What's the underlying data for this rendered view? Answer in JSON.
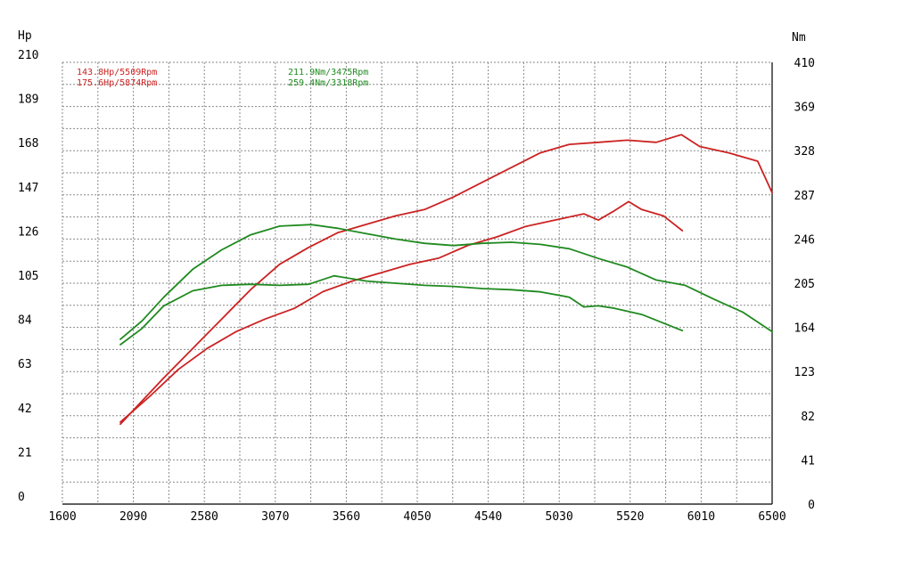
{
  "chart_data": {
    "type": "line",
    "x_unit": "",
    "left_axis": {
      "unit": "Hp",
      "ticks": [
        0,
        21,
        42,
        63,
        84,
        105,
        126,
        147,
        168,
        189,
        210
      ],
      "range": [
        0,
        210
      ]
    },
    "right_axis": {
      "unit": "Nm",
      "ticks": [
        0,
        41,
        82,
        123,
        164,
        205,
        246,
        287,
        328,
        369,
        410
      ],
      "range": [
        0,
        410
      ]
    },
    "x_axis": {
      "ticks": [
        1600,
        2090,
        2580,
        3070,
        3560,
        4050,
        4540,
        5030,
        5520,
        6010,
        6500
      ],
      "range": [
        1600,
        6500
      ]
    },
    "grid": true,
    "annotations": {
      "power_lines": [
        "143.8Hp/5509Rpm",
        "175.6Hp/5874Rpm"
      ],
      "torque_lines": [
        "211.9Nm/3475Rpm",
        "259.4Nm/3318Rpm"
      ]
    },
    "colors": {
      "power": "#cc2222",
      "torque": "#1f8a1f"
    },
    "series": [
      {
        "axis": "left",
        "color": "#cc2222",
        "x": [
          2000,
          2150,
          2300,
          2500,
          2700,
          2900,
          3100,
          3300,
          3500,
          3700,
          3900,
          4100,
          4300,
          4500,
          4700,
          4900,
          5100,
          5300,
          5500,
          5700,
          5874,
          6000,
          6200,
          6400,
          6500
        ],
        "y": [
          38,
          49,
          60,
          74,
          88,
          102,
          114,
          122,
          129,
          133,
          137,
          140,
          146,
          153,
          160,
          167,
          171,
          172,
          173,
          172,
          175.6,
          170,
          167,
          163,
          148
        ]
      },
      {
        "axis": "left",
        "color": "#cc2222",
        "x": [
          2000,
          2200,
          2400,
          2600,
          2800,
          3000,
          3200,
          3400,
          3600,
          3800,
          4000,
          4200,
          4400,
          4600,
          4800,
          5000,
          5200,
          5300,
          5400,
          5509,
          5600,
          5750,
          5880
        ],
        "y": [
          39,
          51,
          64,
          74,
          82,
          88,
          93,
          101,
          106,
          110,
          114,
          117,
          123,
          127,
          132,
          135,
          138,
          135,
          139,
          143.8,
          140,
          137,
          130
        ]
      },
      {
        "axis": "right",
        "color": "#1f8a1f",
        "x": [
          2000,
          2150,
          2300,
          2500,
          2700,
          2900,
          3100,
          3318,
          3500,
          3700,
          3900,
          4100,
          4300,
          4500,
          4700,
          4900,
          5100,
          5300,
          5500,
          5700,
          5900,
          6100,
          6300,
          6500
        ],
        "y": [
          153,
          170,
          192,
          218,
          236,
          250,
          258,
          259.4,
          256,
          251,
          246,
          242,
          240,
          242,
          243,
          241,
          237,
          228,
          220,
          208,
          203,
          190,
          178,
          160
        ]
      },
      {
        "axis": "right",
        "color": "#1f8a1f",
        "x": [
          2000,
          2150,
          2300,
          2500,
          2700,
          2900,
          3100,
          3300,
          3475,
          3700,
          3900,
          4100,
          4300,
          4500,
          4700,
          4900,
          5100,
          5200,
          5300,
          5400,
          5600,
          5750,
          5880
        ],
        "y": [
          148,
          163,
          184,
          198,
          203,
          204,
          203,
          204,
          211.9,
          207,
          205,
          203,
          202,
          200,
          199,
          197,
          192,
          183,
          184,
          182,
          176,
          168,
          161
        ]
      }
    ]
  }
}
